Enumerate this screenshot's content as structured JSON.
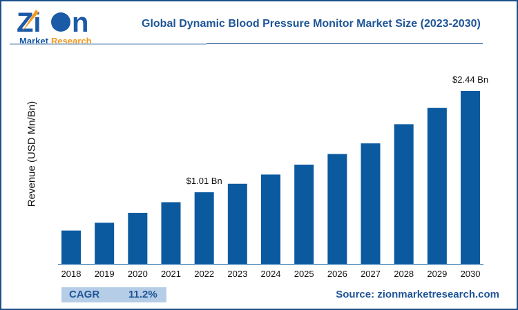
{
  "logo": {
    "brand": "Zion",
    "sub": "Market Research"
  },
  "chart_data": {
    "type": "bar",
    "title": "Global Dynamic Blood Pressure Monitor Market Size (2023-2030)",
    "ylabel": "Revenue (USD Mn/Bn)",
    "xlabel": "",
    "categories": [
      "2018",
      "2019",
      "2020",
      "2021",
      "2022",
      "2023",
      "2024",
      "2025",
      "2026",
      "2027",
      "2028",
      "2029",
      "2030"
    ],
    "values": [
      0.47,
      0.58,
      0.72,
      0.87,
      1.01,
      1.13,
      1.26,
      1.4,
      1.55,
      1.7,
      1.97,
      2.2,
      2.44
    ],
    "ylim": [
      0,
      2.44
    ],
    "grid": false,
    "bar_color": "#0b5aa0",
    "annotations": [
      {
        "category": "2022",
        "text": "$1.01 Bn"
      },
      {
        "category": "2030",
        "text": "$2.44 Bn"
      }
    ]
  },
  "footer": {
    "cagr_label": "CAGR",
    "cagr_value": "11.2%",
    "source": "Source: zionmarketresearch.com"
  }
}
